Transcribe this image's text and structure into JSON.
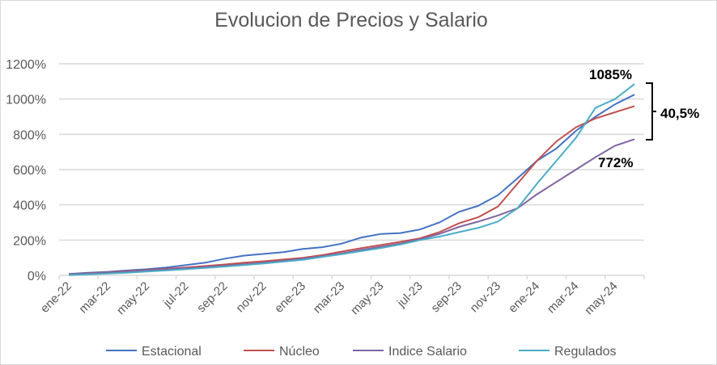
{
  "chart_data": {
    "type": "line",
    "title": "Evolucion de Precios y Salario",
    "xlabel": "",
    "ylabel": "",
    "ylim": [
      0,
      1200
    ],
    "yticks": [
      "0%",
      "200%",
      "400%",
      "600%",
      "800%",
      "1000%",
      "1200%"
    ],
    "grid": true,
    "legend": "bottom",
    "categories": [
      "ene-22",
      "feb-22",
      "mar-22",
      "abr-22",
      "may-22",
      "jun-22",
      "jul-22",
      "ago-22",
      "sep-22",
      "oct-22",
      "nov-22",
      "dic-22",
      "ene-23",
      "feb-23",
      "mar-23",
      "abr-23",
      "may-23",
      "jun-23",
      "jul-23",
      "ago-23",
      "sep-23",
      "oct-23",
      "nov-23",
      "dic-23",
      "ene-24",
      "feb-24",
      "mar-24",
      "abr-24",
      "may-24",
      "jun-24"
    ],
    "xtick_labels": [
      "ene-22",
      "mar-22",
      "may-22",
      "jul-22",
      "sep-22",
      "nov-22",
      "ene-23",
      "mar-23",
      "may-23",
      "jul-23",
      "sep-23",
      "nov-23",
      "ene-24",
      "mar-24",
      "may-24"
    ],
    "series": [
      {
        "name": "Estacional",
        "color": "#4472c4",
        "values": [
          8,
          15,
          20,
          28,
          35,
          45,
          58,
          72,
          95,
          112,
          122,
          132,
          150,
          160,
          180,
          215,
          235,
          240,
          260,
          300,
          360,
          395,
          455,
          550,
          650,
          720,
          820,
          900,
          970,
          1025
        ]
      },
      {
        "name": "Núcleo",
        "color": "#c0504d",
        "values": [
          5,
          12,
          18,
          24,
          30,
          37,
          45,
          53,
          62,
          72,
          80,
          90,
          100,
          115,
          135,
          155,
          172,
          190,
          210,
          245,
          295,
          330,
          390,
          520,
          650,
          760,
          840,
          890,
          925,
          960
        ]
      },
      {
        "name": "Indice Salario",
        "color": "#8064a2",
        "values": [
          4,
          10,
          16,
          22,
          28,
          34,
          40,
          47,
          55,
          63,
          72,
          82,
          95,
          108,
          125,
          145,
          162,
          180,
          205,
          235,
          275,
          305,
          340,
          380,
          460,
          530,
          600,
          670,
          735,
          772
        ]
      },
      {
        "name": "Regulados",
        "color": "#4bacc6",
        "values": [
          2,
          6,
          10,
          15,
          22,
          28,
          35,
          42,
          50,
          58,
          68,
          78,
          88,
          105,
          120,
          138,
          155,
          175,
          200,
          220,
          245,
          270,
          305,
          380,
          520,
          650,
          780,
          950,
          1000,
          1085
        ]
      }
    ],
    "annotations": {
      "top": "1085%",
      "bottom": "772%",
      "gap": "40,5%"
    }
  }
}
